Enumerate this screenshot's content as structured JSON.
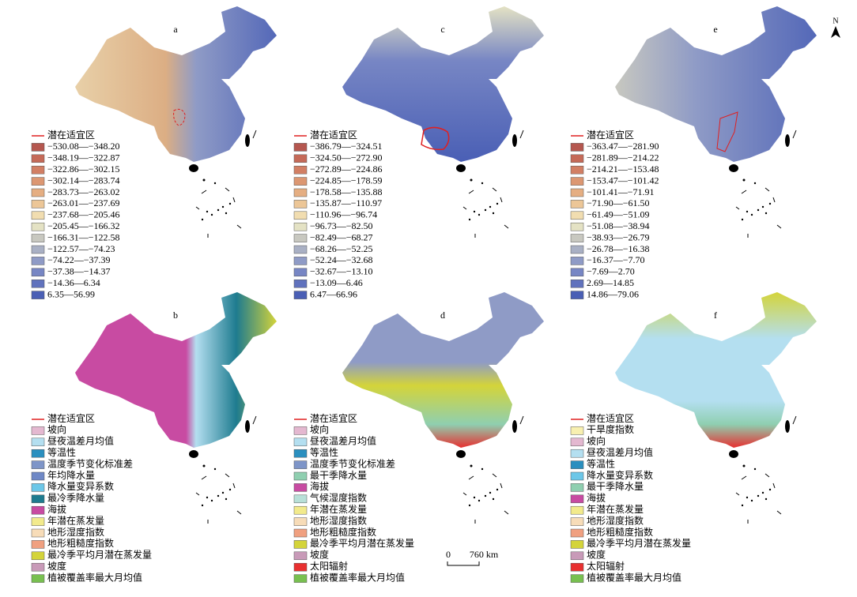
{
  "panels": [
    {
      "label": "a",
      "legend_title": "潜在适宜区",
      "items": [
        {
          "label": "−530.08—−348.20",
          "color": "#b5574f"
        },
        {
          "label": "−348.19—−322.87",
          "color": "#c56a58"
        },
        {
          "label": "−322.86—−302.15",
          "color": "#d27f64"
        },
        {
          "label": "−302.14—−283.74",
          "color": "#dc9772"
        },
        {
          "label": "−283.73—−263.02",
          "color": "#e5ae82"
        },
        {
          "label": "−263.01—−237.69",
          "color": "#ecc697"
        },
        {
          "label": "−237.68—−205.46",
          "color": "#f1ddb0"
        },
        {
          "label": "−205.45—−166.32",
          "color": "#e4e2c4"
        },
        {
          "label": "−166.31—−122.58",
          "color": "#c8c8c0"
        },
        {
          "label": "−122.57—−74.23",
          "color": "#a9b0c4"
        },
        {
          "label": "−74.22—−37.39",
          "color": "#8f9bc6"
        },
        {
          "label": "−37.38—−14.37",
          "color": "#7786c4"
        },
        {
          "label": "−14.36—6.34",
          "color": "#6072bd"
        },
        {
          "label": "6.35—56.99",
          "color": "#4a5fb5"
        }
      ]
    },
    {
      "label": "c",
      "legend_title": "潜在适宜区",
      "items": [
        {
          "label": "−386.79—−324.51",
          "color": "#b5574f"
        },
        {
          "label": "−324.50—−272.90",
          "color": "#c56a58"
        },
        {
          "label": "−272.89—−224.86",
          "color": "#d27f64"
        },
        {
          "label": "−224.85—−178.59",
          "color": "#dc9772"
        },
        {
          "label": "−178.58—−135.88",
          "color": "#e5ae82"
        },
        {
          "label": "−135.87—−110.97",
          "color": "#ecc697"
        },
        {
          "label": "−110.96—−96.74",
          "color": "#f1ddb0"
        },
        {
          "label": "−96.73—−82.50",
          "color": "#e4e2c4"
        },
        {
          "label": "−82.49—−68.27",
          "color": "#c8c8c0"
        },
        {
          "label": "−68.26—−52.25",
          "color": "#a9b0c4"
        },
        {
          "label": "−52.24—−32.68",
          "color": "#8f9bc6"
        },
        {
          "label": "−32.67—−13.10",
          "color": "#7786c4"
        },
        {
          "label": "−13.09—6.46",
          "color": "#6072bd"
        },
        {
          "label": "6.47—66.96",
          "color": "#4a5fb5"
        }
      ]
    },
    {
      "label": "e",
      "legend_title": "潜在适宜区",
      "items": [
        {
          "label": "−363.47—−281.90",
          "color": "#b5574f"
        },
        {
          "label": "−281.89—−214.22",
          "color": "#c56a58"
        },
        {
          "label": "−214.21—−153.48",
          "color": "#d27f64"
        },
        {
          "label": "−153.47—−101.42",
          "color": "#dc9772"
        },
        {
          "label": "−101.41—−71.91",
          "color": "#e5ae82"
        },
        {
          "label": "−71.90—−61.50",
          "color": "#ecc697"
        },
        {
          "label": "−61.49—−51.09",
          "color": "#f1ddb0"
        },
        {
          "label": "−51.08—−38.94",
          "color": "#e4e2c4"
        },
        {
          "label": "−38.93—−26.79",
          "color": "#c8c8c0"
        },
        {
          "label": "−26.78—−16.38",
          "color": "#a9b0c4"
        },
        {
          "label": "−16.37—−7.70",
          "color": "#8f9bc6"
        },
        {
          "label": "−7.69—2.70",
          "color": "#7786c4"
        },
        {
          "label": "2.69—14.85",
          "color": "#6072bd"
        },
        {
          "label": "14.86—79.06",
          "color": "#4a5fb5"
        }
      ]
    },
    {
      "label": "b",
      "legend_title": "潜在适宜区",
      "items": [
        {
          "label": "坡向",
          "color": "#e4b8d0"
        },
        {
          "label": "昼夜温差月均值",
          "color": "#b4dff0"
        },
        {
          "label": "等温性",
          "color": "#2a8fbf"
        },
        {
          "label": "温度季节变化标准差",
          "color": "#7e95c8"
        },
        {
          "label": "年均降水量",
          "color": "#6f88c6"
        },
        {
          "label": "降水量变异系数",
          "color": "#6cc7e8"
        },
        {
          "label": "最冷季降水量",
          "color": "#1e7b8f"
        },
        {
          "label": "海拔",
          "color": "#c84ba2"
        },
        {
          "label": "年潜在蒸发量",
          "color": "#f2ea8c"
        },
        {
          "label": "地形湿度指数",
          "color": "#f7dcb8"
        },
        {
          "label": "地形粗糙度指数",
          "color": "#f0a080"
        },
        {
          "label": "最冷季平均月潜在蒸发量",
          "color": "#d4d43a"
        },
        {
          "label": "坡度",
          "color": "#c89ab8"
        },
        {
          "label": "植被覆盖率最大月均值",
          "color": "#78c050"
        }
      ]
    },
    {
      "label": "d",
      "legend_title": "潜在适宜区",
      "items": [
        {
          "label": "坡向",
          "color": "#e4b8d0"
        },
        {
          "label": "昼夜温差月均值",
          "color": "#b4dff0"
        },
        {
          "label": "等温性",
          "color": "#2a8fbf"
        },
        {
          "label": "温度季节变化标准差",
          "color": "#7e95c8"
        },
        {
          "label": "最干季降水量",
          "color": "#8fcfb0"
        },
        {
          "label": "海拔",
          "color": "#c84ba2"
        },
        {
          "label": "气候湿度指数",
          "color": "#b8e0d8"
        },
        {
          "label": "年潜在蒸发量",
          "color": "#f2ea8c"
        },
        {
          "label": "地形湿度指数",
          "color": "#f7dcb8"
        },
        {
          "label": "地形粗糙度指数",
          "color": "#f0a080"
        },
        {
          "label": "最冷季平均月潜在蒸发量",
          "color": "#d4d43a"
        },
        {
          "label": "坡度",
          "color": "#c89ab8"
        },
        {
          "label": "太阳辐射",
          "color": "#e83030"
        },
        {
          "label": "植被覆盖率最大月均值",
          "color": "#78c050"
        }
      ]
    },
    {
      "label": "f",
      "legend_title": "潜在适宜区",
      "items": [
        {
          "label": "干旱度指数",
          "color": "#f8f0b0"
        },
        {
          "label": "坡向",
          "color": "#e4b8d0"
        },
        {
          "label": "昼夜温差月均值",
          "color": "#b4dff0"
        },
        {
          "label": "等温性",
          "color": "#2a8fbf"
        },
        {
          "label": "降水量变异系数",
          "color": "#6cc7e8"
        },
        {
          "label": "最干季降水量",
          "color": "#8fcfb0"
        },
        {
          "label": "海拔",
          "color": "#c84ba2"
        },
        {
          "label": "年潜在蒸发量",
          "color": "#f2ea8c"
        },
        {
          "label": "地形湿度指数",
          "color": "#f7dcb8"
        },
        {
          "label": "地形粗糙度指数",
          "color": "#f0a080"
        },
        {
          "label": "最冷季平均月潜在蒸发量",
          "color": "#d4d43a"
        },
        {
          "label": "坡度",
          "color": "#c89ab8"
        },
        {
          "label": "太阳辐射",
          "color": "#e83030"
        },
        {
          "label": "植被覆盖率最大月均值",
          "color": "#78c050"
        }
      ]
    }
  ],
  "scale_bar": {
    "start": "0",
    "end": "760 km"
  },
  "north": "N"
}
